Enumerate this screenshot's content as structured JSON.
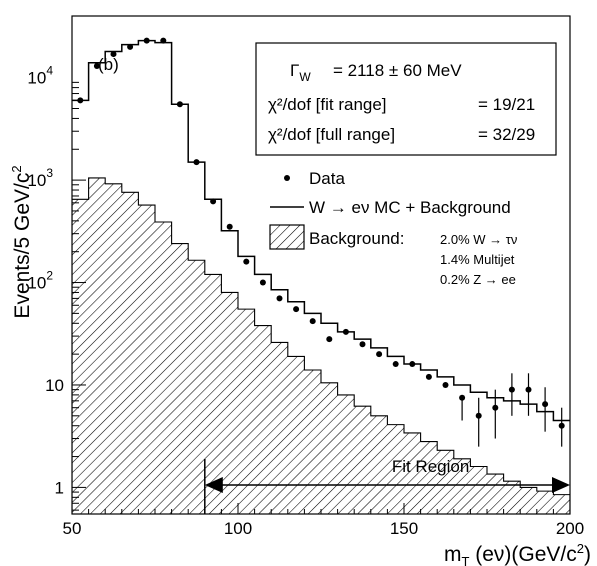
{
  "chart_data": {
    "type": "histogram",
    "panel_label": "(b)",
    "xlabel": "m_T (eν)(GeV/c²)",
    "ylabel": "Events/5 GeV/c²",
    "xlim": [
      50,
      200
    ],
    "ylim": [
      0.55,
      40000
    ],
    "y_scale": "log",
    "x_ticks": [
      "50",
      "100",
      "150",
      "200"
    ],
    "y_ticks": [
      {
        "value": 1,
        "label": "1",
        "exp": ""
      },
      {
        "value": 10,
        "label": "10",
        "exp": ""
      },
      {
        "value": 100,
        "label": "10",
        "exp": "2"
      },
      {
        "value": 1000,
        "label": "10",
        "exp": "3"
      },
      {
        "value": 10000,
        "label": "10",
        "exp": "4"
      }
    ],
    "bin_edges": [
      50,
      55,
      60,
      65,
      70,
      75,
      80,
      85,
      90,
      95,
      100,
      105,
      110,
      115,
      120,
      125,
      130,
      135,
      140,
      145,
      150,
      155,
      160,
      165,
      170,
      175,
      180,
      185,
      190,
      195,
      200
    ],
    "series": [
      {
        "name": "Data",
        "style": "points",
        "x": [
          52.5,
          57.5,
          62.5,
          67.5,
          72.5,
          77.5,
          82.5,
          87.5,
          92.5,
          97.5,
          102.5,
          107.5,
          112.5,
          117.5,
          122.5,
          127.5,
          132.5,
          137.5,
          142.5,
          147.5,
          152.5,
          157.5,
          162.5,
          167.5,
          172.5,
          177.5,
          182.5,
          187.5,
          192.5,
          197.5
        ],
        "y": [
          6000,
          13000,
          17000,
          20000,
          23000,
          23000,
          5500,
          1500,
          620,
          350,
          160,
          100,
          70,
          55,
          42,
          28,
          33,
          25,
          20,
          16,
          16,
          12,
          10,
          7.5,
          5,
          6,
          9,
          9,
          6.5,
          4
        ],
        "yerr_low": [
          6000,
          13000,
          17000,
          20000,
          23000,
          23000,
          5500,
          1500,
          620,
          350,
          160,
          100,
          70,
          55,
          42,
          28,
          33,
          25,
          20,
          16,
          16,
          12,
          10,
          3,
          2.5,
          3,
          4,
          4,
          3,
          1.5
        ],
        "yerr_high": [
          0,
          0,
          0,
          0,
          0,
          0,
          0,
          0,
          0,
          0,
          0,
          0,
          0,
          0,
          0,
          0,
          0,
          0,
          0,
          0,
          0,
          0,
          0,
          0,
          2.5,
          3,
          4,
          4,
          3,
          2
        ]
      },
      {
        "name": "W → eν MC + Background",
        "style": "step",
        "values": [
          6000,
          14000,
          18000,
          21000,
          23000,
          22000,
          5500,
          1500,
          650,
          320,
          180,
          120,
          85,
          65,
          50,
          40,
          33,
          28,
          23,
          19,
          16,
          14,
          12,
          10,
          8.5,
          7.5,
          7,
          6.5,
          5.5,
          4.5
        ]
      },
      {
        "name": "Background:",
        "style": "hatched",
        "values": [
          650,
          1050,
          920,
          760,
          570,
          390,
          240,
          165,
          120,
          80,
          55,
          38,
          26,
          19,
          14,
          10.5,
          8,
          6.2,
          5,
          4.1,
          3.4,
          2.8,
          2.3,
          1.9,
          1.6,
          1.35,
          1.15,
          1.0,
          0.92,
          0.85
        ]
      }
    ],
    "legend": {
      "placement": "right-middle",
      "data_label": "Data",
      "mc_label": "W → eν MC + Background",
      "bkg_label": "Background:",
      "bkg_components": [
        "2.0% W → τν",
        "1.4% Multijet",
        "0.2% Z → ee"
      ]
    },
    "info_box": {
      "width_label": "Γ",
      "width_sub": "W",
      "width_value": "= 2118 ± 60 MeV",
      "fit_label": "χ²/dof [fit range]",
      "fit_value": "= 19/21",
      "full_label": "χ²/dof [full range]",
      "full_value": "= 32/29"
    },
    "fit_region": {
      "label": "Fit Region",
      "range": [
        90,
        200
      ]
    }
  }
}
